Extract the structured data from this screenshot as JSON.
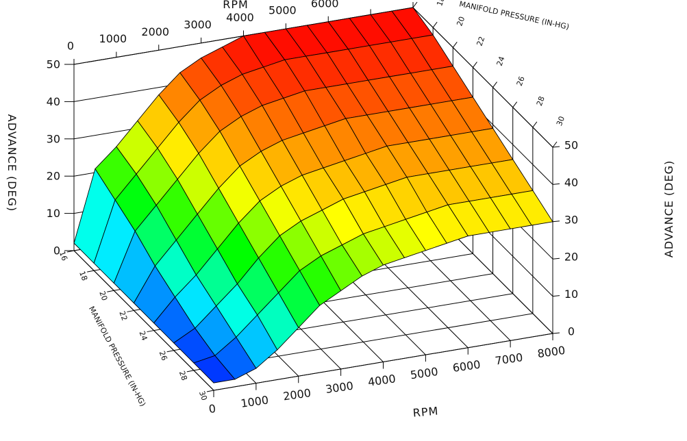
{
  "chart_data": {
    "type": "surface",
    "title": "",
    "x_axis": {
      "label": "RPM",
      "range": [
        0,
        8000
      ],
      "ticks": [
        "0",
        "1000",
        "2000",
        "3000",
        "4000",
        "5000",
        "6000",
        "7000",
        "8000"
      ]
    },
    "y_axis": {
      "label": "MANIFOLD PRESSURE (IN-HG)",
      "range": [
        16,
        30
      ],
      "ticks": [
        "16",
        "18",
        "20",
        "22",
        "24",
        "26",
        "28",
        "30"
      ]
    },
    "z_axis": {
      "label": "ADVANCE (DEG)",
      "range": [
        0,
        50
      ],
      "ticks": [
        "0",
        "10",
        "20",
        "30",
        "40",
        "50"
      ]
    },
    "rpm": [
      0,
      500,
      1000,
      1500,
      2000,
      2500,
      3000,
      3500,
      4000,
      4500,
      5000,
      5500,
      6000,
      6500,
      7000,
      7500,
      8000
    ],
    "manifold_pressure": [
      16,
      18,
      20,
      22,
      24,
      26,
      28,
      30
    ],
    "advance": [
      [
        2,
        21,
        26,
        32,
        38,
        43,
        46,
        48,
        50,
        50,
        50,
        50,
        50,
        50,
        50,
        50,
        50
      ],
      [
        2,
        18,
        24,
        30,
        36,
        41,
        44,
        46,
        47,
        48,
        48,
        48,
        48,
        48,
        48,
        48,
        48
      ],
      [
        2,
        15,
        21,
        27,
        33,
        38,
        41,
        43,
        44,
        45,
        45,
        45,
        45,
        45,
        45,
        45,
        45
      ],
      [
        2,
        11,
        17,
        23,
        29,
        34,
        37,
        39,
        40,
        41,
        42,
        42,
        42,
        42,
        42,
        42,
        42
      ],
      [
        2,
        8,
        13,
        19,
        25,
        30,
        33,
        35,
        36,
        37,
        38,
        39,
        39,
        39,
        39,
        39,
        39
      ],
      [
        2,
        5,
        10,
        15,
        21,
        26,
        29,
        31,
        33,
        34,
        35,
        36,
        36,
        36,
        36,
        36,
        36
      ],
      [
        2,
        3,
        7,
        12,
        17,
        22,
        25,
        27,
        29,
        30,
        31,
        32,
        33,
        33,
        33,
        33,
        33
      ],
      [
        2,
        2,
        4,
        8,
        13,
        18,
        21,
        24,
        26,
        27,
        28,
        29,
        30,
        30,
        30,
        30,
        30
      ]
    ],
    "colormap": [
      "#0000ff",
      "#00ffff",
      "#00ff00",
      "#ffff00",
      "#ff8000",
      "#ff0000"
    ],
    "grid": true
  }
}
